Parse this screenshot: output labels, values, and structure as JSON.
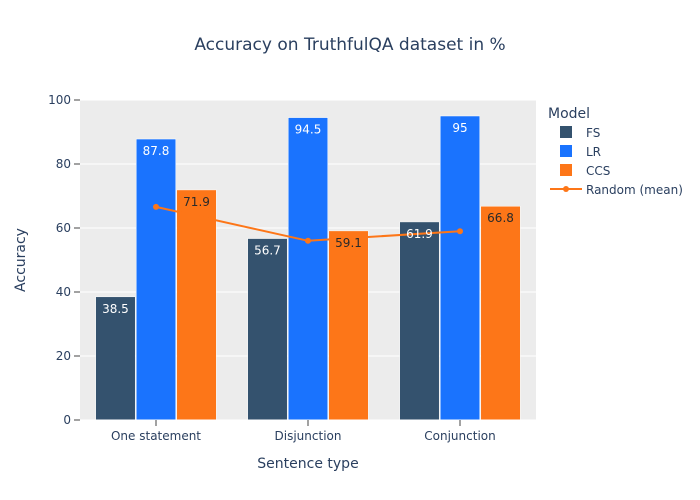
{
  "chart_data": {
    "type": "bar",
    "title": "Accuracy on TruthfulQA dataset in %",
    "xlabel": "Sentence type",
    "ylabel": "Accuracy",
    "ylim": [
      0,
      100
    ],
    "yticks": [
      0,
      20,
      40,
      60,
      80,
      100
    ],
    "categories": [
      "One statement",
      "Disjunction",
      "Conjunction"
    ],
    "legend": {
      "title": "Model",
      "placement": "right"
    },
    "series": [
      {
        "name": "FS",
        "values": [
          38.5,
          56.7,
          61.9
        ],
        "color": "#34526e",
        "labels": [
          "38.5",
          "56.7",
          "61.9"
        ]
      },
      {
        "name": "LR",
        "values": [
          87.8,
          94.5,
          95
        ],
        "color": "#1a73fe",
        "labels": [
          "87.8",
          "94.5",
          "95"
        ]
      },
      {
        "name": "CCS",
        "values": [
          71.9,
          59.1,
          66.8
        ],
        "color": "#fd7618",
        "labels": [
          "71.9",
          "59.1",
          "66.8"
        ]
      }
    ],
    "line_series": {
      "name": "Random (mean)",
      "type": "line",
      "color": "#fd7618",
      "values": [
        66.6,
        56.0,
        59.0
      ]
    },
    "grid": true,
    "background": "#ececec"
  }
}
